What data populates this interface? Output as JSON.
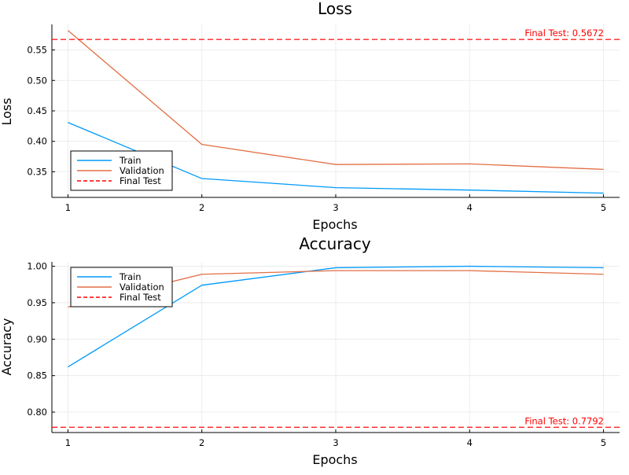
{
  "chart_data": [
    {
      "type": "line",
      "title": "Loss",
      "xlabel": "Epochs",
      "ylabel": "Loss",
      "x": [
        1,
        2,
        3,
        4,
        5
      ],
      "xticks": [
        "1",
        "2",
        "3",
        "4",
        "5"
      ],
      "xlim": [
        0.88,
        5.12
      ],
      "ylim": [
        0.308,
        0.592
      ],
      "yticks": [
        0.35,
        0.4,
        0.45,
        0.5,
        0.55
      ],
      "ytick_labels": [
        "0.35",
        "0.40",
        "0.45",
        "0.50",
        "0.55"
      ],
      "grid": true,
      "legend_position": "bottom-left",
      "series": [
        {
          "name": "Train",
          "values": [
            0.431,
            0.339,
            0.324,
            0.32,
            0.315
          ],
          "color": "#009AFA"
        },
        {
          "name": "Validation",
          "values": [
            0.582,
            0.395,
            0.362,
            0.363,
            0.354
          ],
          "color": "#E26F46"
        }
      ],
      "reference_line": {
        "name": "Final Test",
        "value": 0.5672,
        "color": "#FF0000",
        "style": "dashed"
      },
      "annotation": "Final Test: 0.5672"
    },
    {
      "type": "line",
      "title": "Accuracy",
      "xlabel": "Epochs",
      "ylabel": "Accuracy",
      "x": [
        1,
        2,
        3,
        4,
        5
      ],
      "xticks": [
        "1",
        "2",
        "3",
        "4",
        "5"
      ],
      "xlim": [
        0.88,
        5.12
      ],
      "ylim": [
        0.772,
        1.006
      ],
      "yticks": [
        0.8,
        0.85,
        0.9,
        0.95,
        1.0
      ],
      "ytick_labels": [
        "0.80",
        "0.85",
        "0.90",
        "0.95",
        "1.00"
      ],
      "grid": true,
      "legend_position": "top-left",
      "series": [
        {
          "name": "Train",
          "values": [
            0.862,
            0.974,
            0.998,
            1.0,
            0.998
          ],
          "color": "#009AFA"
        },
        {
          "name": "Validation",
          "values": [
            0.944,
            0.989,
            0.994,
            0.994,
            0.989
          ],
          "color": "#E26F46"
        }
      ],
      "reference_line": {
        "name": "Final Test",
        "value": 0.7792,
        "color": "#FF0000",
        "style": "dashed"
      },
      "annotation": "Final Test: 0.7792"
    }
  ]
}
